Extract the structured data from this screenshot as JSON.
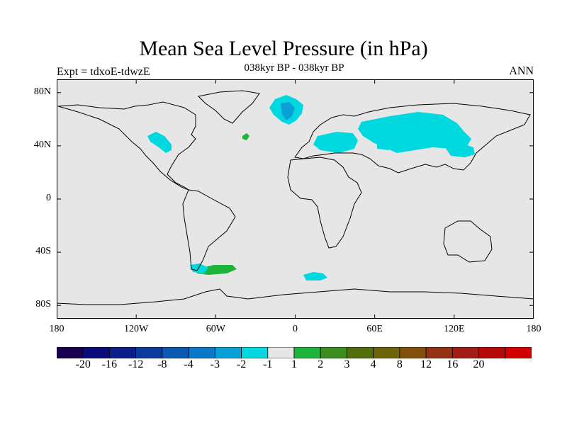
{
  "title": "Mean Sea Level Pressure (in hPa)",
  "subtitle": "038kyr BP - 038kyr BP",
  "left_label": "Expt = tdxoE-tdwzE",
  "right_label": "ANN",
  "colors": {
    "land_ocean_background": "#e6e6e6",
    "coast": "#000000"
  },
  "map": {
    "lat_ticks": [
      {
        "lat": 80,
        "label": "80N"
      },
      {
        "lat": 40,
        "label": "40N"
      },
      {
        "lat": 0,
        "label": "0"
      },
      {
        "lat": -40,
        "label": "40S"
      },
      {
        "lat": -80,
        "label": "80S"
      }
    ],
    "lon_ticks": [
      {
        "lon": -180,
        "label": "180"
      },
      {
        "lon": -120,
        "label": "120W"
      },
      {
        "lon": -60,
        "label": "60W"
      },
      {
        "lon": 0,
        "label": "0"
      },
      {
        "lon": 60,
        "label": "60E"
      },
      {
        "lon": 120,
        "label": "120E"
      },
      {
        "lon": 180,
        "label": "180"
      }
    ]
  },
  "colorbar": {
    "colors": [
      "#1a0050",
      "#0a0a78",
      "#0a1e8c",
      "#0a3ca0",
      "#0a5ab4",
      "#0a78c8",
      "#0aa0d7",
      "#00d8e0",
      "#e6e6e6",
      "#1eb43c",
      "#3c8c1e",
      "#506e0a",
      "#6e640a",
      "#82500a",
      "#963214",
      "#a01e14",
      "#b40a0a",
      "#d20000"
    ],
    "labels": [
      "-20",
      "-16",
      "-12",
      "-8",
      "-4",
      "-3",
      "-2",
      "-1",
      "1",
      "2",
      "3",
      "4",
      "8",
      "12",
      "16",
      "20"
    ]
  },
  "chart_data": {
    "type": "heatmap",
    "title": "Mean Sea Level Pressure (in hPa)",
    "subtitle": "038kyr BP - 038kyr BP",
    "xlim": [
      -180,
      180
    ],
    "ylim": [
      -90,
      90
    ],
    "regions": [
      {
        "name": "Greenland Sea low",
        "category": "-2 to -1",
        "lon": -8,
        "lat": 70
      },
      {
        "name": "Greenland Sea core",
        "category": "-3 to -2",
        "lon": -5,
        "lat": 67
      },
      {
        "name": "Siberia",
        "category": "-2 to -1",
        "lon": 90,
        "lat": 55
      },
      {
        "name": "Eastern Europe",
        "category": "-2 to -1",
        "lon": 30,
        "lat": 45
      },
      {
        "name": "East Asia",
        "category": "-2 to -1",
        "lon": 125,
        "lat": 38
      },
      {
        "name": "Western North America",
        "category": "-2 to -1",
        "lon": -100,
        "lat": 42
      },
      {
        "name": "South Atlantic south of Africa",
        "category": "-2 to -1",
        "lon": 15,
        "lat": -58
      },
      {
        "name": "North Atlantic",
        "category": "1 to 2",
        "lon": -37,
        "lat": 48
      },
      {
        "name": "Drake Passage",
        "category": "1 to 2",
        "lon": -60,
        "lat": -53
      },
      {
        "name": "Drake Passage west",
        "category": "-2 to -1",
        "lon": -72,
        "lat": -53
      }
    ]
  }
}
